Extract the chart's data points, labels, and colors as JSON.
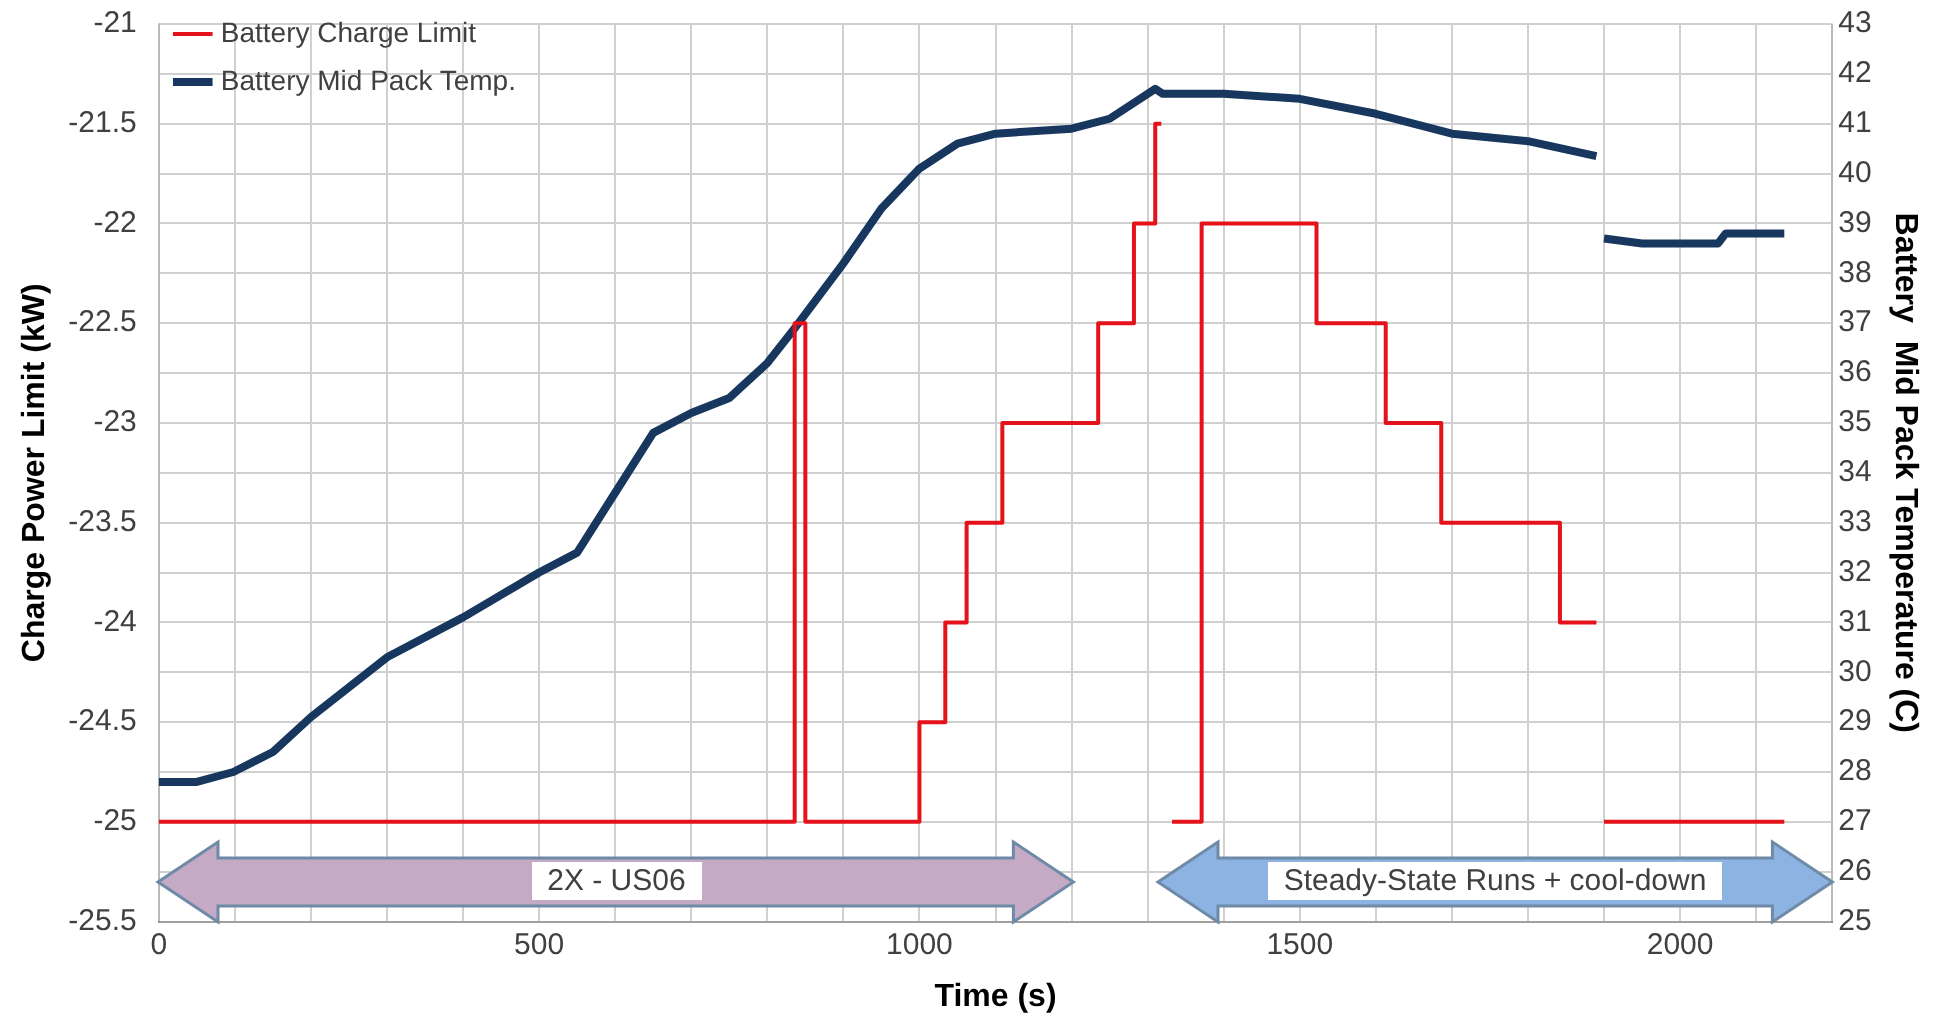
{
  "chart_data": {
    "type": "line",
    "xlabel": "Time (s)",
    "ylabel": "Charge Power Limit (kW)",
    "y2label": "Battery  Mid Pack Temperature (C)",
    "series": [
      {
        "name": "Battery Charge Limit",
        "color": "#e3121b",
        "x": [
          0,
          836,
          836,
          850,
          850,
          1000,
          1000,
          1034,
          1034,
          1062,
          1062,
          1109,
          1109,
          1235,
          1235,
          1282,
          1282,
          1310,
          1310,
          1318,
          1325,
          1332,
          1371,
          1371,
          1522,
          1522,
          1613,
          1613,
          1686,
          1686,
          1842,
          1842,
          1890,
          1895,
          1900,
          2137
        ],
        "values": [
          -25,
          -25,
          -22.5,
          -22.5,
          -25,
          -25,
          -24.5,
          -24.5,
          -24,
          -24,
          -23.5,
          -23.5,
          -23,
          -23,
          -22.5,
          -22.5,
          -22,
          -22,
          -21.5,
          -21.5,
          null,
          -25,
          -25,
          -22,
          -22,
          -22.5,
          -22.5,
          -23,
          -23,
          -23.5,
          -23.5,
          -24,
          -24,
          null,
          -25,
          -25
        ]
      },
      {
        "name": "Battery Mid Pack Temp.",
        "color": "#17375e",
        "axis": "y2",
        "x": [
          0,
          50,
          98,
          150,
          200,
          300,
          400,
          500,
          550,
          600,
          650,
          700,
          750,
          800,
          836,
          900,
          950,
          1000,
          1050,
          1100,
          1200,
          1250,
          1310,
          1320,
          1400,
          1500,
          1600,
          1700,
          1800,
          1890,
          1895,
          1900,
          1950,
          2050,
          2060,
          2137
        ],
        "values": [
          27.8,
          27.8,
          28.0,
          28.4,
          29.1,
          30.3,
          31.1,
          32.0,
          32.4,
          33.6,
          34.8,
          35.2,
          35.5,
          36.2,
          36.9,
          38.2,
          39.3,
          40.1,
          40.6,
          40.8,
          40.9,
          41.1,
          41.7,
          41.6,
          41.6,
          41.5,
          41.2,
          40.8,
          40.65,
          40.35,
          null,
          38.7,
          38.6,
          38.6,
          38.8,
          38.8
        ]
      }
    ],
    "xlim": [
      0,
      2200
    ],
    "xticks": [
      0,
      {
        "value": 100,
        "label": null
      },
      {
        "value": 200,
        "label": null
      },
      {
        "value": 300,
        "label": null
      },
      {
        "value": 400,
        "label": null
      },
      500,
      {
        "value": 600,
        "label": null
      },
      {
        "value": 700,
        "label": null
      },
      {
        "value": 800,
        "label": null
      },
      {
        "value": 900,
        "label": null
      },
      1000,
      {
        "value": 1100,
        "label": null
      },
      {
        "value": 1200,
        "label": null
      },
      {
        "value": 1300,
        "label": null
      },
      {
        "value": 1400,
        "label": null
      },
      1500,
      {
        "value": 1600,
        "label": null
      },
      {
        "value": 1700,
        "label": null
      },
      {
        "value": 1800,
        "label": null
      },
      {
        "value": 1900,
        "label": null
      },
      2000,
      {
        "value": 2100,
        "label": null
      },
      {
        "value": 2200,
        "label": null
      }
    ],
    "ylim": [
      -25.5,
      -21
    ],
    "yticks": [
      -25.5,
      -25,
      -24.5,
      -24,
      -23.5,
      -23,
      -22.5,
      -22,
      -21.5,
      -21
    ],
    "y2lim": [
      25,
      43
    ],
    "y2ticks": [
      25,
      26,
      27,
      28,
      29,
      30,
      31,
      32,
      33,
      34,
      35,
      36,
      37,
      38,
      39,
      40,
      41,
      42,
      43
    ],
    "annotations": [
      "2X - US06",
      "Steady-State Runs + cool-down"
    ],
    "grid": true,
    "legend": "top left",
    "marker": "none",
    "line_style": "solid"
  }
}
